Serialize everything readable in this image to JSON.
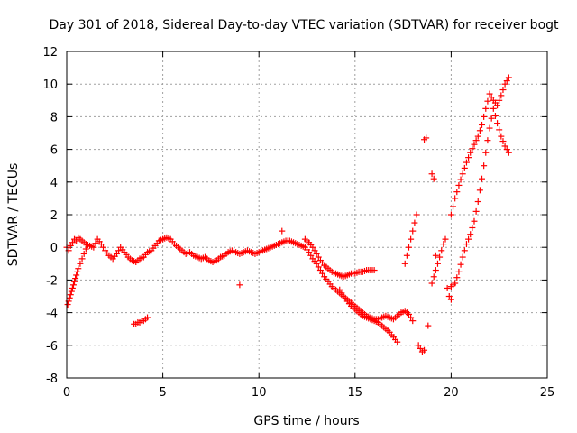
{
  "chart_data": {
    "type": "scatter",
    "title": "Day 301 of 2018, Sidereal Day-to-day VTEC variation (SDTVAR) for receiver bogt",
    "xlabel": "GPS time / hours",
    "ylabel": "SDTVAR / TECUs",
    "xlim": [
      0,
      25
    ],
    "ylim": [
      -8,
      12
    ],
    "xticks": [
      0,
      5,
      10,
      15,
      20,
      25
    ],
    "yticks": [
      -8,
      -6,
      -4,
      -2,
      0,
      2,
      4,
      6,
      8,
      10,
      12
    ],
    "grid": true,
    "marker": "+",
    "color": "#ff0000",
    "series": [
      {
        "name": "main",
        "x": [
          0.0,
          0.1,
          0.2,
          0.3,
          0.4,
          0.5,
          0.6,
          0.7,
          0.8,
          0.9,
          1.0,
          1.2,
          1.4,
          1.6,
          1.8,
          2.0,
          2.2,
          2.4,
          2.6,
          2.8,
          3.0,
          3.2,
          3.4,
          3.6,
          3.8,
          4.0,
          4.2,
          4.4,
          4.6,
          4.8,
          5.0,
          5.2,
          5.4,
          5.6,
          5.8,
          6.0,
          6.2,
          6.4,
          6.6,
          6.8,
          7.0,
          7.2,
          7.4,
          7.6,
          7.8,
          8.0,
          8.2,
          8.4,
          8.6,
          8.8,
          9.0,
          9.2,
          9.4,
          9.6,
          9.8,
          10.0,
          10.2,
          10.4,
          10.6,
          10.8,
          11.0,
          11.2,
          11.4,
          11.6,
          11.8,
          12.0,
          12.2,
          12.4,
          12.6,
          12.8,
          13.0,
          13.2,
          13.4,
          13.6,
          13.8,
          14.0,
          14.2,
          14.4,
          14.6,
          14.8,
          15.0,
          15.2,
          15.4,
          15.6,
          15.8,
          16.0,
          16.2,
          16.4,
          16.6,
          16.8,
          17.0,
          17.2,
          17.4,
          17.6,
          17.8,
          18.0
        ],
        "y": [
          0.0,
          -0.2,
          0.1,
          0.3,
          0.5,
          0.4,
          0.6,
          0.5,
          0.4,
          0.3,
          0.2,
          0.1,
          0.0,
          0.5,
          0.2,
          -0.2,
          -0.5,
          -0.7,
          -0.4,
          0.0,
          -0.3,
          -0.6,
          -0.8,
          -0.9,
          -0.7,
          -0.6,
          -0.3,
          -0.2,
          0.1,
          0.4,
          0.5,
          0.6,
          0.5,
          0.2,
          0.0,
          -0.2,
          -0.4,
          -0.3,
          -0.5,
          -0.6,
          -0.7,
          -0.6,
          -0.8,
          -0.9,
          -0.8,
          -0.6,
          -0.5,
          -0.3,
          -0.2,
          -0.3,
          -0.4,
          -0.3,
          -0.2,
          -0.3,
          -0.4,
          -0.3,
          -0.2,
          -0.1,
          0.0,
          0.1,
          0.2,
          0.3,
          0.4,
          0.4,
          0.3,
          0.2,
          0.1,
          0.0,
          -0.3,
          -0.7,
          -1.0,
          -1.4,
          -1.8,
          -2.1,
          -2.4,
          -2.6,
          -2.8,
          -3.0,
          -3.2,
          -3.4,
          -3.6,
          -3.8,
          -4.0,
          -4.2,
          -4.3,
          -4.4,
          -4.4,
          -4.3,
          -4.2,
          -4.3,
          -4.4,
          -4.2,
          -4.0,
          -3.9,
          -4.1,
          -4.5
        ]
      },
      {
        "name": "upper-branch",
        "x": [
          12.4,
          12.6,
          12.8,
          13.0,
          13.2,
          13.4,
          13.6,
          13.8,
          14.0,
          14.2,
          14.4,
          14.6,
          14.8,
          15.0,
          15.2,
          15.4,
          15.6,
          15.8,
          16.0
        ],
        "y": [
          0.5,
          0.3,
          0.0,
          -0.4,
          -0.8,
          -1.1,
          -1.3,
          -1.5,
          -1.6,
          -1.7,
          -1.8,
          -1.7,
          -1.6,
          -1.6,
          -1.5,
          -1.5,
          -1.4,
          -1.4,
          -1.4
        ]
      },
      {
        "name": "lower-branch",
        "x": [
          14.2,
          14.4,
          14.6,
          14.8,
          15.0,
          15.2,
          15.4,
          15.6,
          15.8,
          16.0,
          16.2,
          16.4,
          16.6,
          16.8,
          17.0,
          17.2
        ],
        "y": [
          -2.6,
          -3.0,
          -3.3,
          -3.6,
          -3.8,
          -4.0,
          -4.2,
          -4.3,
          -4.4,
          -4.5,
          -4.6,
          -4.8,
          -5.0,
          -5.2,
          -5.5,
          -5.8
        ]
      },
      {
        "name": "early-drop",
        "x": [
          0.05,
          0.1,
          0.15,
          0.2,
          0.25,
          0.3,
          0.35,
          0.4,
          0.45,
          0.5,
          0.55,
          0.6,
          0.7,
          0.8,
          0.9,
          1.0
        ],
        "y": [
          -3.5,
          -3.3,
          -3.1,
          -2.9,
          -2.7,
          -2.5,
          -2.3,
          -2.1,
          -1.9,
          -1.7,
          -1.5,
          -1.3,
          -1.0,
          -0.7,
          -0.4,
          -0.1
        ]
      },
      {
        "name": "offset-cluster",
        "x": [
          3.5,
          3.6,
          3.7,
          3.8,
          3.9,
          4.0,
          4.1,
          4.2
        ],
        "y": [
          -4.7,
          -4.7,
          -4.6,
          -4.6,
          -4.5,
          -4.5,
          -4.4,
          -4.3
        ]
      },
      {
        "name": "rise-left",
        "x": [
          17.6,
          17.7,
          17.8,
          17.9,
          18.0,
          18.1,
          18.2
        ],
        "y": [
          -1.0,
          -0.5,
          0.0,
          0.5,
          1.0,
          1.5,
          2.0
        ]
      },
      {
        "name": "isolated",
        "x": [
          9.0,
          11.2,
          18.6,
          18.7,
          18.8,
          19.0,
          19.1,
          19.2
        ],
        "y": [
          -2.3,
          1.0,
          6.6,
          6.7,
          -4.8,
          4.5,
          4.2,
          -0.5
        ]
      },
      {
        "name": "late-dip",
        "x": [
          18.3,
          18.4,
          18.5,
          18.6
        ],
        "y": [
          -6.0,
          -6.2,
          -6.4,
          -6.3
        ]
      },
      {
        "name": "rise-middle",
        "x": [
          19.0,
          19.1,
          19.2,
          19.3,
          19.4,
          19.5,
          19.6,
          19.7,
          19.8,
          19.9,
          20.0
        ],
        "y": [
          -2.2,
          -1.8,
          -1.4,
          -1.0,
          -0.6,
          -0.2,
          0.2,
          0.5,
          -2.5,
          -3.0,
          -3.2
        ]
      },
      {
        "name": "rise-right-a",
        "x": [
          20.0,
          20.2,
          20.4,
          20.6,
          20.8,
          21.0,
          21.2,
          21.4,
          21.6,
          21.8,
          22.0,
          22.2,
          22.4,
          22.6,
          22.8,
          23.0
        ],
        "y": [
          2.0,
          3.0,
          3.8,
          4.5,
          5.2,
          5.8,
          6.3,
          6.8,
          7.5,
          8.5,
          9.4,
          9.0,
          8.7,
          9.3,
          10.0,
          10.4
        ]
      },
      {
        "name": "rise-right-b",
        "x": [
          20.0,
          20.2,
          20.4,
          20.6,
          20.8,
          21.0,
          21.2,
          21.4,
          21.6,
          21.8,
          22.0,
          22.2,
          22.4,
          22.6,
          22.8,
          23.0
        ],
        "y": [
          -2.4,
          -2.2,
          -1.5,
          -0.6,
          0.2,
          0.8,
          1.6,
          2.8,
          4.2,
          5.8,
          7.3,
          8.5,
          7.6,
          6.8,
          6.2,
          5.8
        ]
      }
    ]
  }
}
